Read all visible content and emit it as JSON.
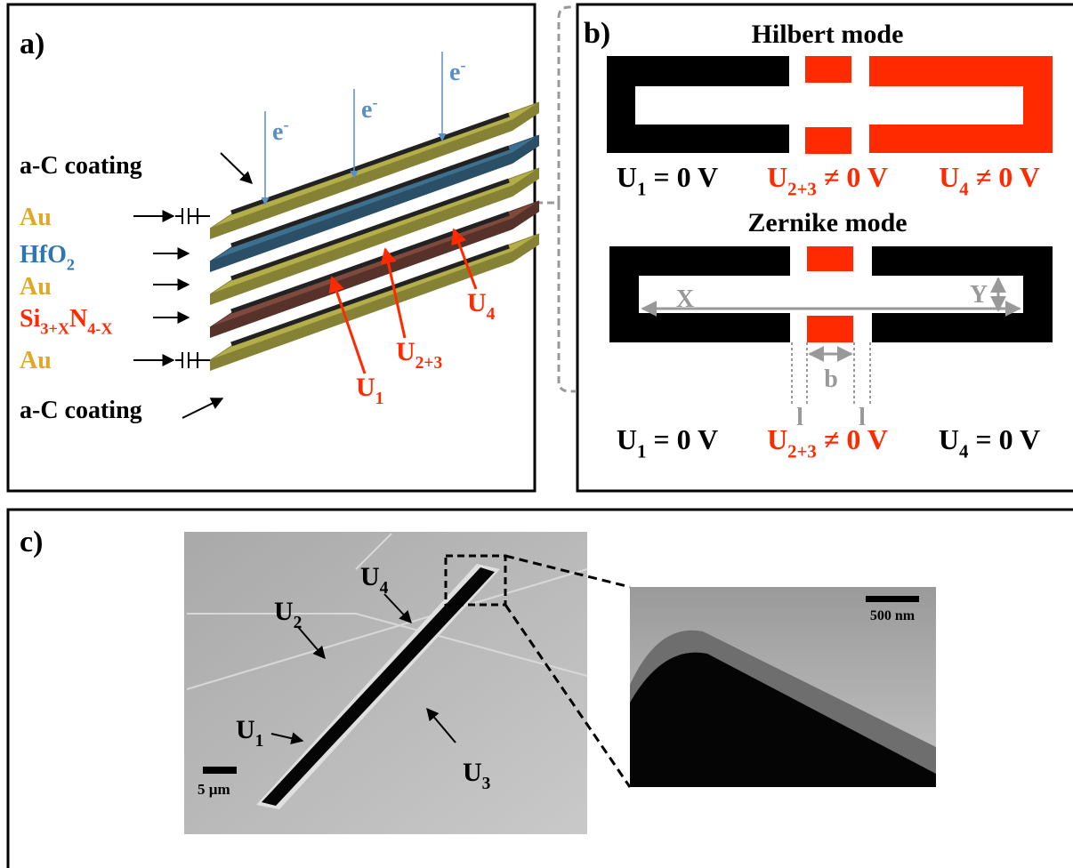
{
  "panel_a": {
    "label": "a)",
    "electrons": [
      {
        "parts": [
          {
            "t": "e"
          },
          {
            "sup": "-"
          }
        ]
      },
      {
        "parts": [
          {
            "t": "e"
          },
          {
            "sup": "-"
          }
        ]
      },
      {
        "parts": [
          {
            "t": "e"
          },
          {
            "sup": "-"
          }
        ]
      }
    ],
    "layers": [
      {
        "parts": [
          {
            "t": "a-C coating"
          }
        ],
        "color": "#000000"
      },
      {
        "parts": [
          {
            "t": "Au"
          }
        ],
        "color": "#e0a826"
      },
      {
        "parts": [
          {
            "t": "HfO"
          },
          {
            "sub": "2"
          }
        ],
        "color": "#2e75b6"
      },
      {
        "parts": [
          {
            "t": "Au"
          }
        ],
        "color": "#e0a826"
      },
      {
        "parts": [
          {
            "t": "Si"
          },
          {
            "sub": "3+X"
          },
          {
            "t": "N"
          },
          {
            "sub": "4-X"
          }
        ],
        "color": "#ff2a00"
      },
      {
        "parts": [
          {
            "t": "Au"
          }
        ],
        "color": "#e0a826"
      },
      {
        "parts": [
          {
            "t": "a-C coating"
          }
        ],
        "color": "#000000"
      }
    ],
    "voltages": [
      {
        "parts": [
          {
            "t": "U"
          },
          {
            "sub": "1"
          }
        ],
        "color": "#ff2a00"
      },
      {
        "parts": [
          {
            "t": "U"
          },
          {
            "sub": "2+3"
          }
        ],
        "color": "#ff2a00"
      },
      {
        "parts": [
          {
            "t": "U"
          },
          {
            "sub": "4"
          }
        ],
        "color": "#ff2a00"
      }
    ]
  },
  "panel_b": {
    "label": "b)",
    "hilbert": {
      "title": "Hilbert mode",
      "labels": [
        {
          "parts": [
            {
              "t": "U"
            },
            {
              "sub": "1"
            },
            {
              "t": " = 0 V"
            }
          ],
          "color": "#000000"
        },
        {
          "parts": [
            {
              "t": "U"
            },
            {
              "sub": "2+3"
            },
            {
              "t": " ≠ 0 V"
            }
          ],
          "color": "#ff2a00"
        },
        {
          "parts": [
            {
              "t": "U"
            },
            {
              "sub": "4"
            },
            {
              "t": " ≠ 0 V"
            }
          ],
          "color": "#ff2a00"
        }
      ]
    },
    "zernike": {
      "title": "Zernike mode",
      "labels": [
        {
          "parts": [
            {
              "t": "U"
            },
            {
              "sub": "1"
            },
            {
              "t": " = 0 V"
            }
          ],
          "color": "#000000"
        },
        {
          "parts": [
            {
              "t": "U"
            },
            {
              "sub": "2+3"
            },
            {
              "t": " ≠ 0 V"
            }
          ],
          "color": "#ff2a00"
        },
        {
          "parts": [
            {
              "t": "U"
            },
            {
              "sub": "4"
            },
            {
              "t": " = 0 V"
            }
          ],
          "color": "#000000"
        }
      ],
      "dimensions": {
        "x": "X",
        "y": "Y",
        "b": "b",
        "l": [
          "l",
          "l"
        ]
      }
    }
  },
  "panel_c": {
    "label": "c)",
    "electrodes": [
      {
        "parts": [
          {
            "t": "U"
          },
          {
            "sub": "4"
          }
        ]
      },
      {
        "parts": [
          {
            "t": "U"
          },
          {
            "sub": "2"
          }
        ]
      },
      {
        "parts": [
          {
            "t": "U"
          },
          {
            "sub": "1"
          }
        ]
      },
      {
        "parts": [
          {
            "t": "U"
          },
          {
            "sub": "3"
          }
        ]
      }
    ],
    "scale_bars": [
      "5 µm",
      "500 nm"
    ]
  }
}
